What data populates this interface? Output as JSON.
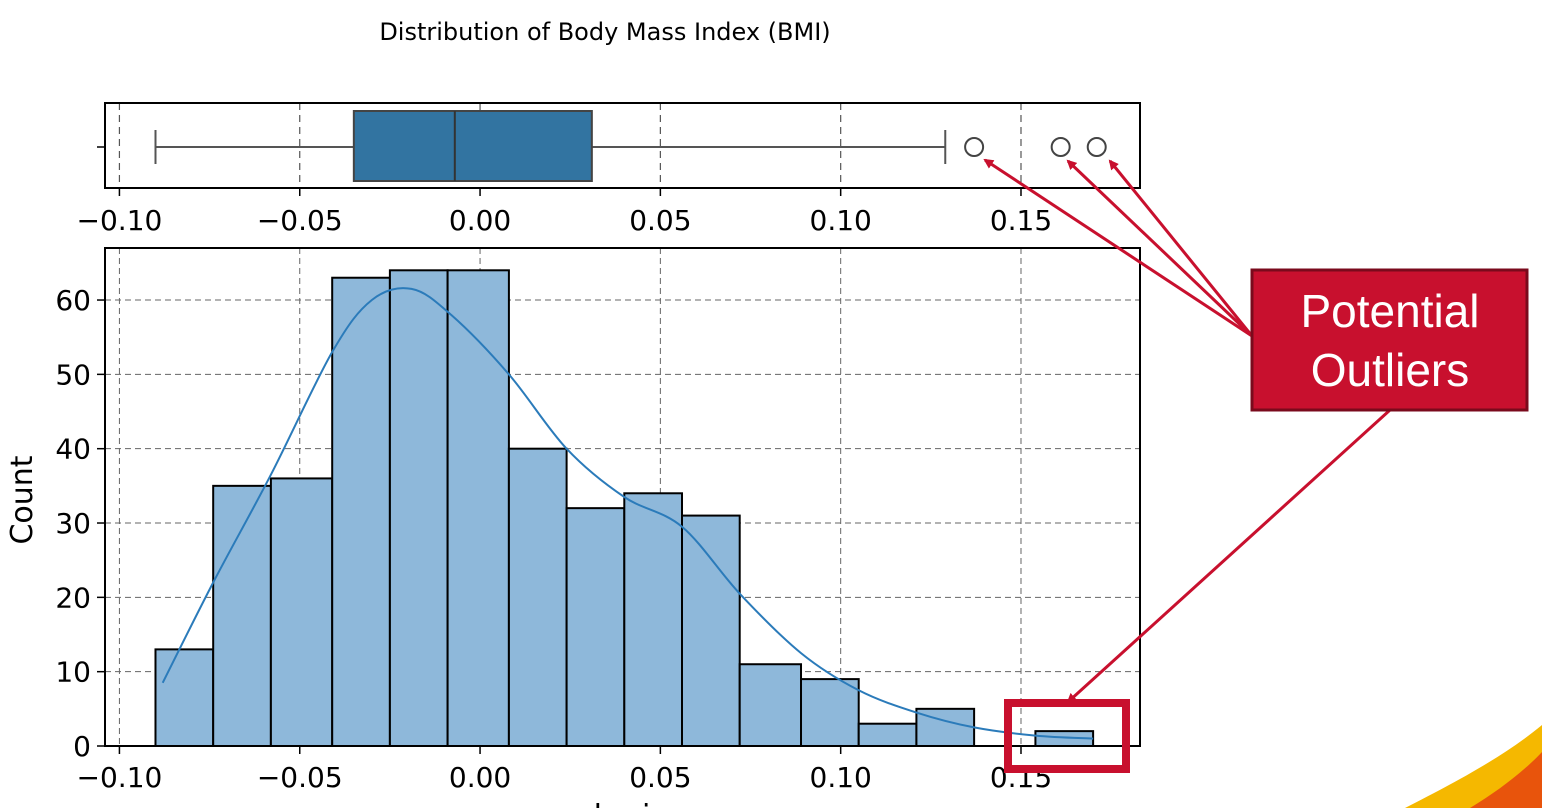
{
  "chart_data": [
    {
      "type": "boxplot",
      "title": "Distribution of Body Mass Index (BMI)",
      "xlim": [
        -0.104,
        0.183
      ],
      "xticks": [
        -0.1,
        -0.05,
        0.0,
        0.05,
        0.1,
        0.15
      ],
      "xtick_labels": [
        "−0.10",
        "−0.05",
        "0.00",
        "0.05",
        "0.10",
        "0.15"
      ],
      "grid": true,
      "stats": {
        "whisker_low": -0.09,
        "q1": -0.035,
        "median": -0.007,
        "q3": 0.031,
        "whisker_high": 0.129
      },
      "outliers": [
        0.137,
        0.161,
        0.171
      ],
      "color": "#3274a1"
    },
    {
      "type": "histogram",
      "xlim": [
        -0.104,
        0.183
      ],
      "ylim": [
        0,
        67
      ],
      "xticks": [
        -0.1,
        -0.05,
        0.0,
        0.05,
        0.1,
        0.15
      ],
      "xtick_labels": [
        "−0.10",
        "−0.05",
        "0.00",
        "0.05",
        "0.10",
        "0.15"
      ],
      "yticks": [
        0,
        10,
        20,
        30,
        40,
        50,
        60
      ],
      "ytick_labels": [
        "0",
        "10",
        "20",
        "30",
        "40",
        "50",
        "60"
      ],
      "ylabel": "Count",
      "xlabel": "bmi",
      "grid": true,
      "bin_edges": [
        -0.09,
        -0.074,
        -0.058,
        -0.041,
        -0.025,
        -0.009,
        0.008,
        0.024,
        0.04,
        0.056,
        0.072,
        0.089,
        0.105,
        0.121,
        0.137,
        0.154,
        0.17
      ],
      "counts": [
        13,
        35,
        36,
        63,
        64,
        64,
        40,
        32,
        34,
        31,
        11,
        9,
        3,
        5,
        0,
        2
      ],
      "kde": {
        "x": [
          -0.088,
          -0.074,
          -0.058,
          -0.041,
          -0.03,
          -0.019,
          -0.008,
          0.008,
          0.024,
          0.04,
          0.056,
          0.072,
          0.089,
          0.105,
          0.121,
          0.137,
          0.154,
          0.17
        ],
        "y": [
          8.5,
          22,
          36.5,
          53,
          60,
          61.5,
          58,
          50,
          40,
          33.5,
          29.5,
          20.5,
          12.5,
          7.5,
          4.5,
          2.5,
          1.4,
          1.0
        ]
      },
      "bar_color": "#8eb8da",
      "kde_color": "#2b7bba"
    }
  ],
  "annotation": {
    "label_line1": "Potential",
    "label_line2": "Outliers",
    "color": "#c8102e"
  }
}
